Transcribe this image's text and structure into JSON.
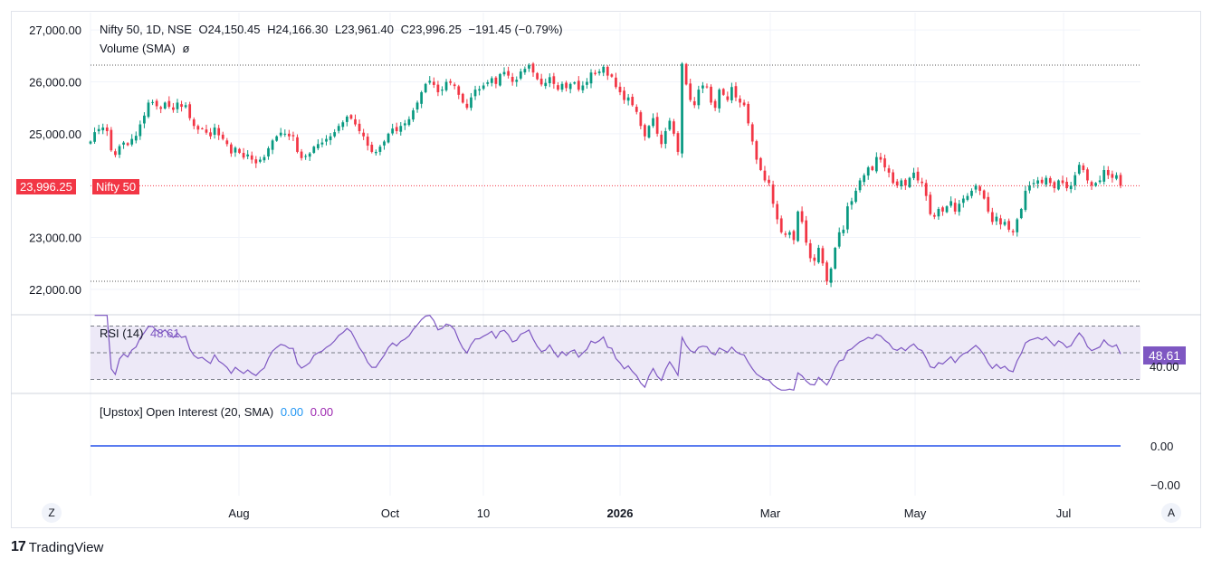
{
  "header": {
    "symbol": "Nifty 50, 1D, NSE",
    "open": "O24,150.45",
    "high": "H24,166.30",
    "low": "L23,961.40",
    "close": "C23,996.25",
    "change": "−191.45 (−0.79%)",
    "volume_label": "Volume (SMA)",
    "volume_value": "ø"
  },
  "price_axis": {
    "ticks": [
      {
        "value": 27000,
        "label": "27,000.00"
      },
      {
        "value": 26000,
        "label": "26,000.00"
      },
      {
        "value": 25000,
        "label": "25,000.00"
      },
      {
        "value": 23000,
        "label": "23,000.00"
      },
      {
        "value": 22000,
        "label": "22,000.00"
      }
    ],
    "last_price_label": "23,996.25",
    "last_price_value": 23996.25,
    "symbol_tag": "Nifty 50"
  },
  "rsi": {
    "label": "RSI (14)",
    "value_label": "48.61",
    "axis_tag": "48.61",
    "axis_label": "40.00"
  },
  "oi": {
    "label": "[Upstox] Open Interest (20, SMA)",
    "value1": "0.00",
    "value2": "0.00",
    "axis_ticks": [
      "0.00",
      "−0.00"
    ]
  },
  "time_axis": {
    "labels": [
      "Aug",
      "Oct",
      "10",
      "2026",
      "Mar",
      "May",
      "Jul"
    ]
  },
  "buttons": {
    "left": "Z",
    "right": "A"
  },
  "brand": {
    "mark": "17",
    "name": "TradingView"
  },
  "colors": {
    "up": "#089981",
    "down": "#f23645",
    "rsi": "#7e57c2",
    "rsi_band": "#ede9f7",
    "oi": "#5b7cf0",
    "oi_value1": "#2196f3",
    "oi_value2": "#9c27b0"
  },
  "chart_data": {
    "type": "candlestick",
    "price_range": [
      21700,
      27300
    ],
    "closes": [
      24850,
      25030,
      25090,
      25120,
      25050,
      24680,
      24590,
      24760,
      24830,
      24780,
      24900,
      24960,
      25180,
      25350,
      25600,
      25610,
      25530,
      25480,
      25600,
      25520,
      25460,
      25600,
      25520,
      25550,
      25300,
      25150,
      25080,
      25100,
      25020,
      24950,
      25120,
      24970,
      24900,
      24800,
      24620,
      24730,
      24630,
      24540,
      24600,
      24500,
      24430,
      24500,
      24550,
      24720,
      24870,
      24950,
      25020,
      25000,
      24950,
      24950,
      24650,
      24530,
      24570,
      24620,
      24750,
      24800,
      24830,
      24900,
      24950,
      25030,
      25150,
      25220,
      25330,
      25290,
      25180,
      25050,
      24950,
      24770,
      24650,
      24650,
      24750,
      24850,
      25000,
      25100,
      25050,
      25150,
      25200,
      25280,
      25450,
      25600,
      25800,
      25960,
      26020,
      25940,
      25800,
      25850,
      26000,
      25980,
      25920,
      25750,
      25600,
      25500,
      25700,
      25850,
      25860,
      25930,
      25990,
      26070,
      25960,
      26150,
      26190,
      26120,
      26000,
      26040,
      26200,
      26250,
      26320,
      26180,
      26050,
      25950,
      25980,
      26090,
      25960,
      25850,
      25960,
      25880,
      25960,
      25990,
      25850,
      25930,
      26000,
      26180,
      26150,
      26200,
      26290,
      26120,
      26100,
      25900,
      25800,
      25650,
      25700,
      25550,
      25420,
      25150,
      24950,
      25150,
      25300,
      25000,
      24800,
      25050,
      25250,
      25000,
      24650,
      26350,
      25950,
      25650,
      25550,
      25850,
      25930,
      25900,
      25600,
      25500,
      25850,
      25750,
      25650,
      25900,
      25700,
      25600,
      25550,
      25200,
      24850,
      24500,
      24300,
      24100,
      24050,
      23650,
      23350,
      23100,
      23050,
      23100,
      22950,
      23500,
      23300,
      22900,
      22600,
      22550,
      22800,
      22500,
      22150,
      22400,
      22800,
      23100,
      23150,
      23600,
      23700,
      23900,
      24100,
      24200,
      24350,
      24300,
      24550,
      24500,
      24350,
      24250,
      24050,
      24000,
      24100,
      24000,
      24150,
      24250,
      24100,
      24050,
      23800,
      23450,
      23400,
      23550,
      23500,
      23600,
      23700,
      23500,
      23650,
      23750,
      23800,
      23900,
      24000,
      23900,
      23750,
      23500,
      23300,
      23400,
      23250,
      23300,
      23150,
      23100,
      23350,
      23550,
      23900,
      24000,
      24050,
      24100,
      24050,
      24150,
      24050,
      23950,
      24100,
      24050,
      23950,
      24000,
      24200,
      24400,
      24300,
      24100,
      24000,
      24050,
      24100,
      24300,
      24200,
      24150,
      24200,
      23996
    ]
  }
}
